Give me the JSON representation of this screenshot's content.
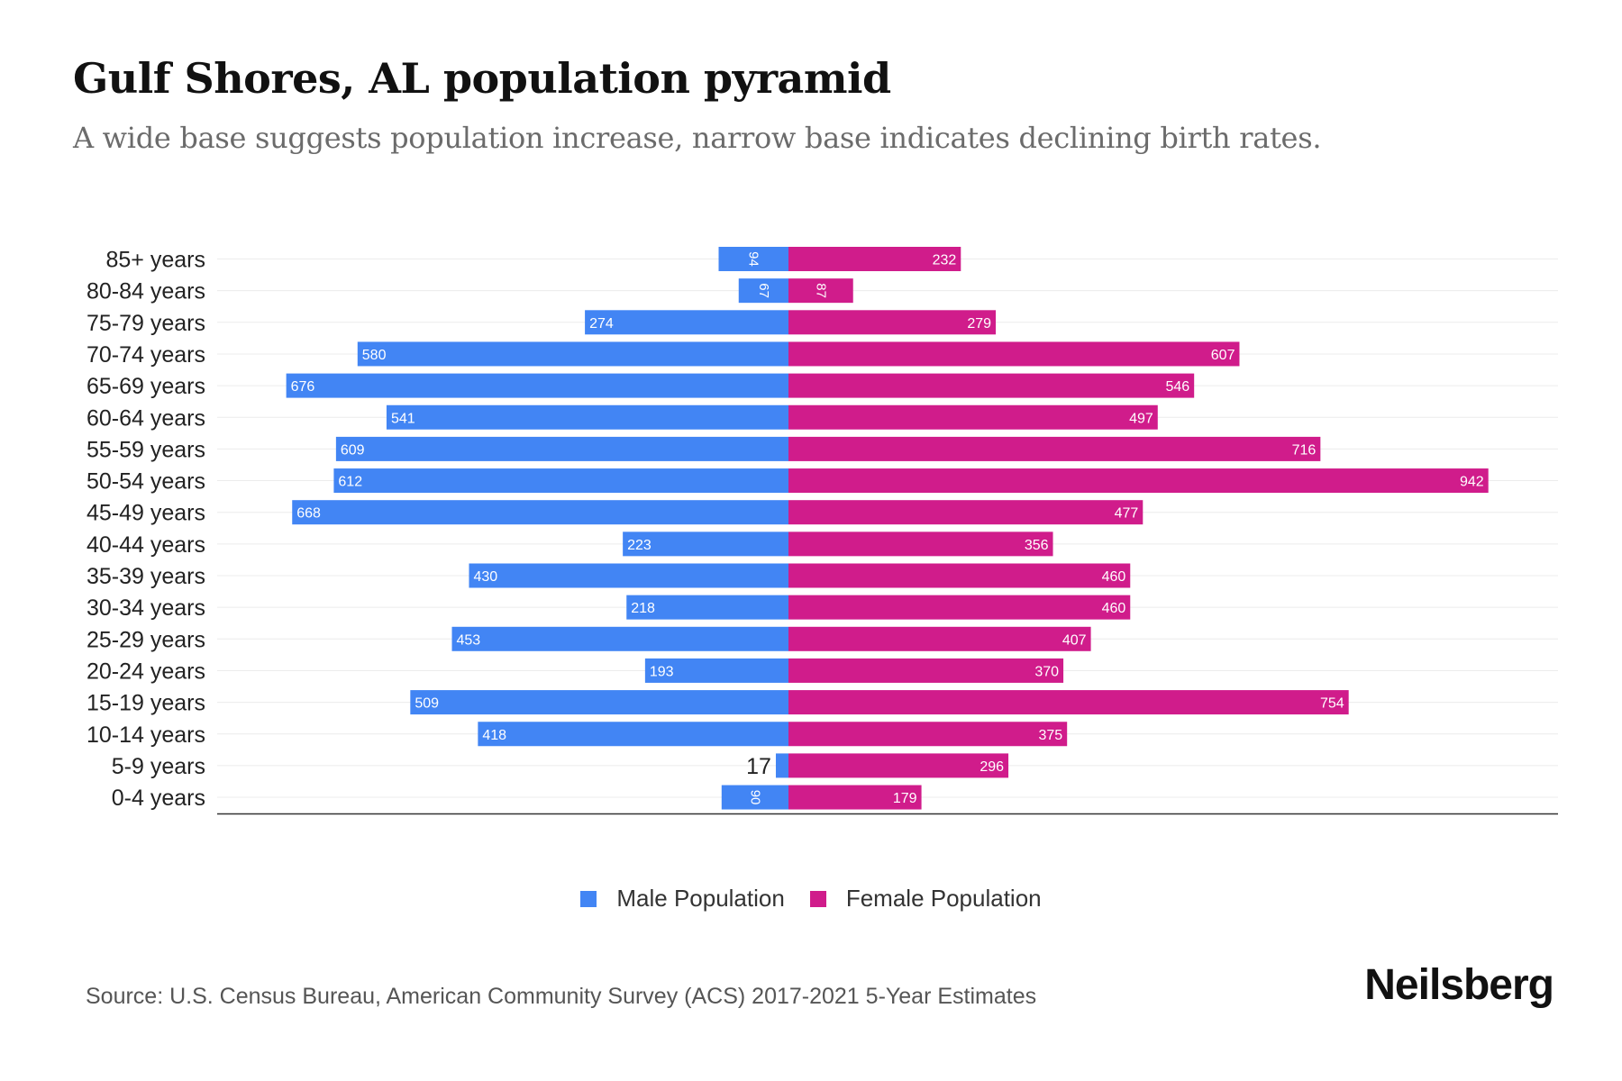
{
  "header": {
    "title": "Gulf Shores, AL population pyramid",
    "subtitle": "A wide base suggests population increase, narrow base indicates declining birth rates."
  },
  "chart_data": {
    "type": "bar",
    "orientation": "horizontal-pyramid",
    "categories": [
      "85+ years",
      "80-84 years",
      "75-79 years",
      "70-74 years",
      "65-69 years",
      "60-64 years",
      "55-59 years",
      "50-54 years",
      "45-49 years",
      "40-44 years",
      "35-39 years",
      "30-34 years",
      "25-29 years",
      "20-24 years",
      "15-19 years",
      "10-14 years",
      "5-9 years",
      "0-4 years"
    ],
    "series": [
      {
        "name": "Male Population",
        "color": "#4285f4",
        "side": "left",
        "values": [
          94,
          67,
          274,
          580,
          676,
          541,
          609,
          612,
          668,
          223,
          430,
          218,
          453,
          193,
          509,
          418,
          17,
          90
        ]
      },
      {
        "name": "Female Population",
        "color": "#d01c8b",
        "side": "right",
        "values": [
          232,
          87,
          279,
          607,
          546,
          497,
          716,
          942,
          477,
          356,
          460,
          460,
          407,
          370,
          754,
          375,
          296,
          179
        ]
      }
    ],
    "xlim": [
      -942,
      942
    ],
    "grid": true,
    "legend": "bottom-center"
  },
  "footer": {
    "source": "Source: U.S. Census Bureau, American Community Survey (ACS) 2017-2021 5-Year Estimates",
    "logo": "Neilsberg"
  }
}
